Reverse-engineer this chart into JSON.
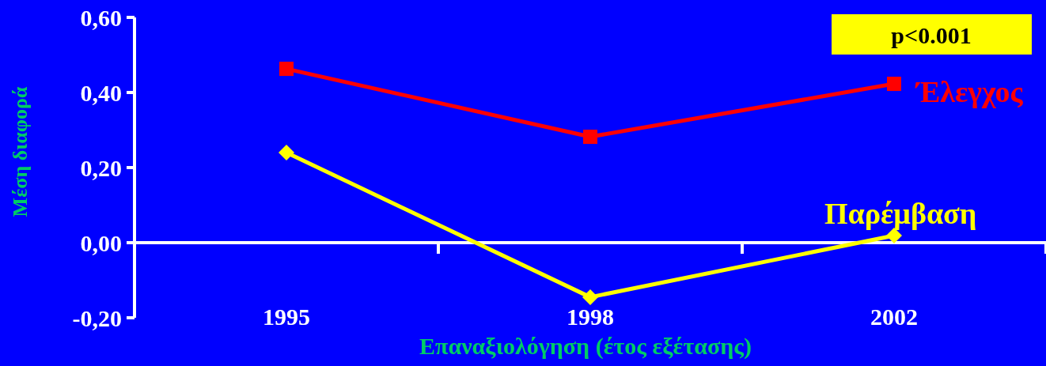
{
  "chart_data": {
    "type": "line",
    "xlabel": "Επαναξιολόγηση (έτος εξέτασης)",
    "ylabel": "Μέση διαφορά",
    "categories": [
      "1995",
      "1998",
      "2002"
    ],
    "series": [
      {
        "name": "Έλεγχος",
        "color": "#ff0000",
        "marker": "square",
        "values": [
          0.463,
          0.282,
          0.423
        ]
      },
      {
        "name": "Παρέμβαση",
        "color": "#ffff00",
        "marker": "diamond",
        "values": [
          0.24,
          -0.145,
          0.019
        ]
      }
    ],
    "ylim": [
      -0.2,
      0.6
    ],
    "yticks": [
      {
        "value": -0.2,
        "label": "-0,20"
      },
      {
        "value": 0,
        "label": "0,00"
      },
      {
        "value": 0.2,
        "label": "0,20"
      },
      {
        "value": 0.4,
        "label": "0,40"
      },
      {
        "value": 0.6,
        "label": "0,60"
      }
    ],
    "annotations": [
      "p<0.001"
    ]
  }
}
